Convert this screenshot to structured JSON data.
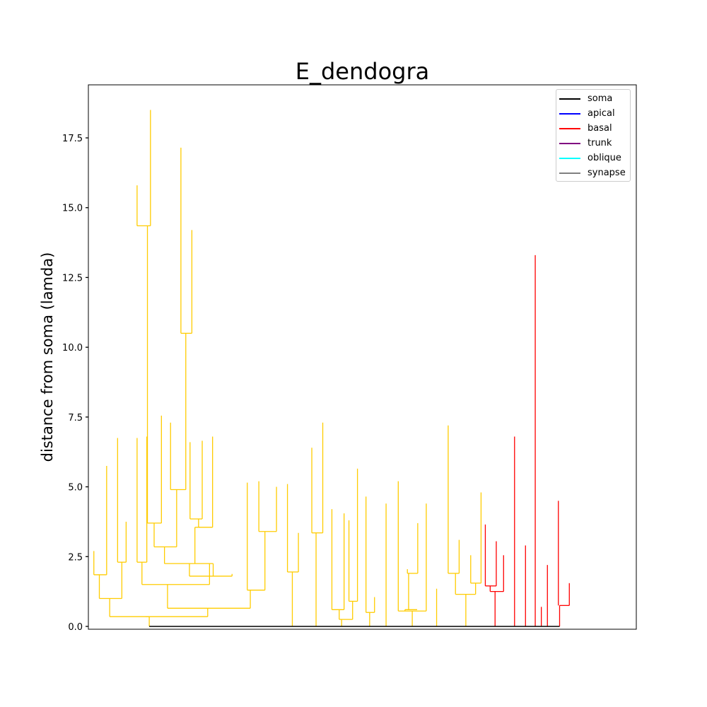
{
  "chart_data": {
    "type": "dendrogram",
    "title": "E_dendogra",
    "xlabel": "",
    "ylabel": "distance from soma (lamda)",
    "ylim": [
      0,
      19.4
    ],
    "yticks": [
      0.0,
      2.5,
      5.0,
      7.5,
      10.0,
      12.5,
      15.0,
      17.5
    ],
    "ytick_labels": [
      "0.0",
      "2.5",
      "5.0",
      "7.5",
      "10.0",
      "12.5",
      "15.0",
      "17.5"
    ],
    "grid": false,
    "legend_position": "top-right",
    "legend": [
      {
        "label": "soma",
        "color": "#000000"
      },
      {
        "label": "apical",
        "color": "#0000ff"
      },
      {
        "label": "basal",
        "color": "#ff0000"
      },
      {
        "label": "trunk",
        "color": "#800080"
      },
      {
        "label": "oblique",
        "color": "#00ffff"
      },
      {
        "label": "synapse",
        "color": "#808080"
      }
    ],
    "series_colors": {
      "dendrite": "#ffcc00",
      "basal": "#ff0000",
      "soma": "#000000"
    },
    "soma": {
      "x_start": 0,
      "x_end": 2,
      "y": 0
    },
    "segments": [
      {
        "color": "dendrite",
        "x": [
          0,
          0
        ],
        "y": [
          0,
          0.35
        ]
      },
      {
        "color": "dendrite",
        "x": [
          -0.06,
          0.05
        ],
        "y": [
          0.35,
          0.35
        ]
      },
      {
        "color": "dendrite",
        "x": [
          0.05,
          0.05
        ],
        "y": [
          0.35,
          0.65
        ]
      },
      {
        "color": "dendrite",
        "x": [
          -0.13,
          0.15
        ],
        "y": [
          0.65,
          0.65
        ]
      },
      {
        "color": "dendrite",
        "x": [
          0.15,
          0.15
        ],
        "y": [
          0.65,
          1.3
        ]
      },
      {
        "color": "dendrite",
        "x": [
          0.15,
          0.18
        ],
        "y": [
          1.3,
          1.3
        ]
      },
      {
        "color": "dendrite",
        "x": [
          0.18,
          0.18
        ],
        "y": [
          1.3,
          3.4
        ]
      },
      {
        "color": "dendrite",
        "x": [
          0.18,
          0.2
        ],
        "y": [
          3.4,
          3.4
        ]
      },
      {
        "color": "dendrite",
        "x": [
          0.2,
          0.2
        ],
        "y": [
          3.4,
          5.0
        ]
      }
    ]
  }
}
